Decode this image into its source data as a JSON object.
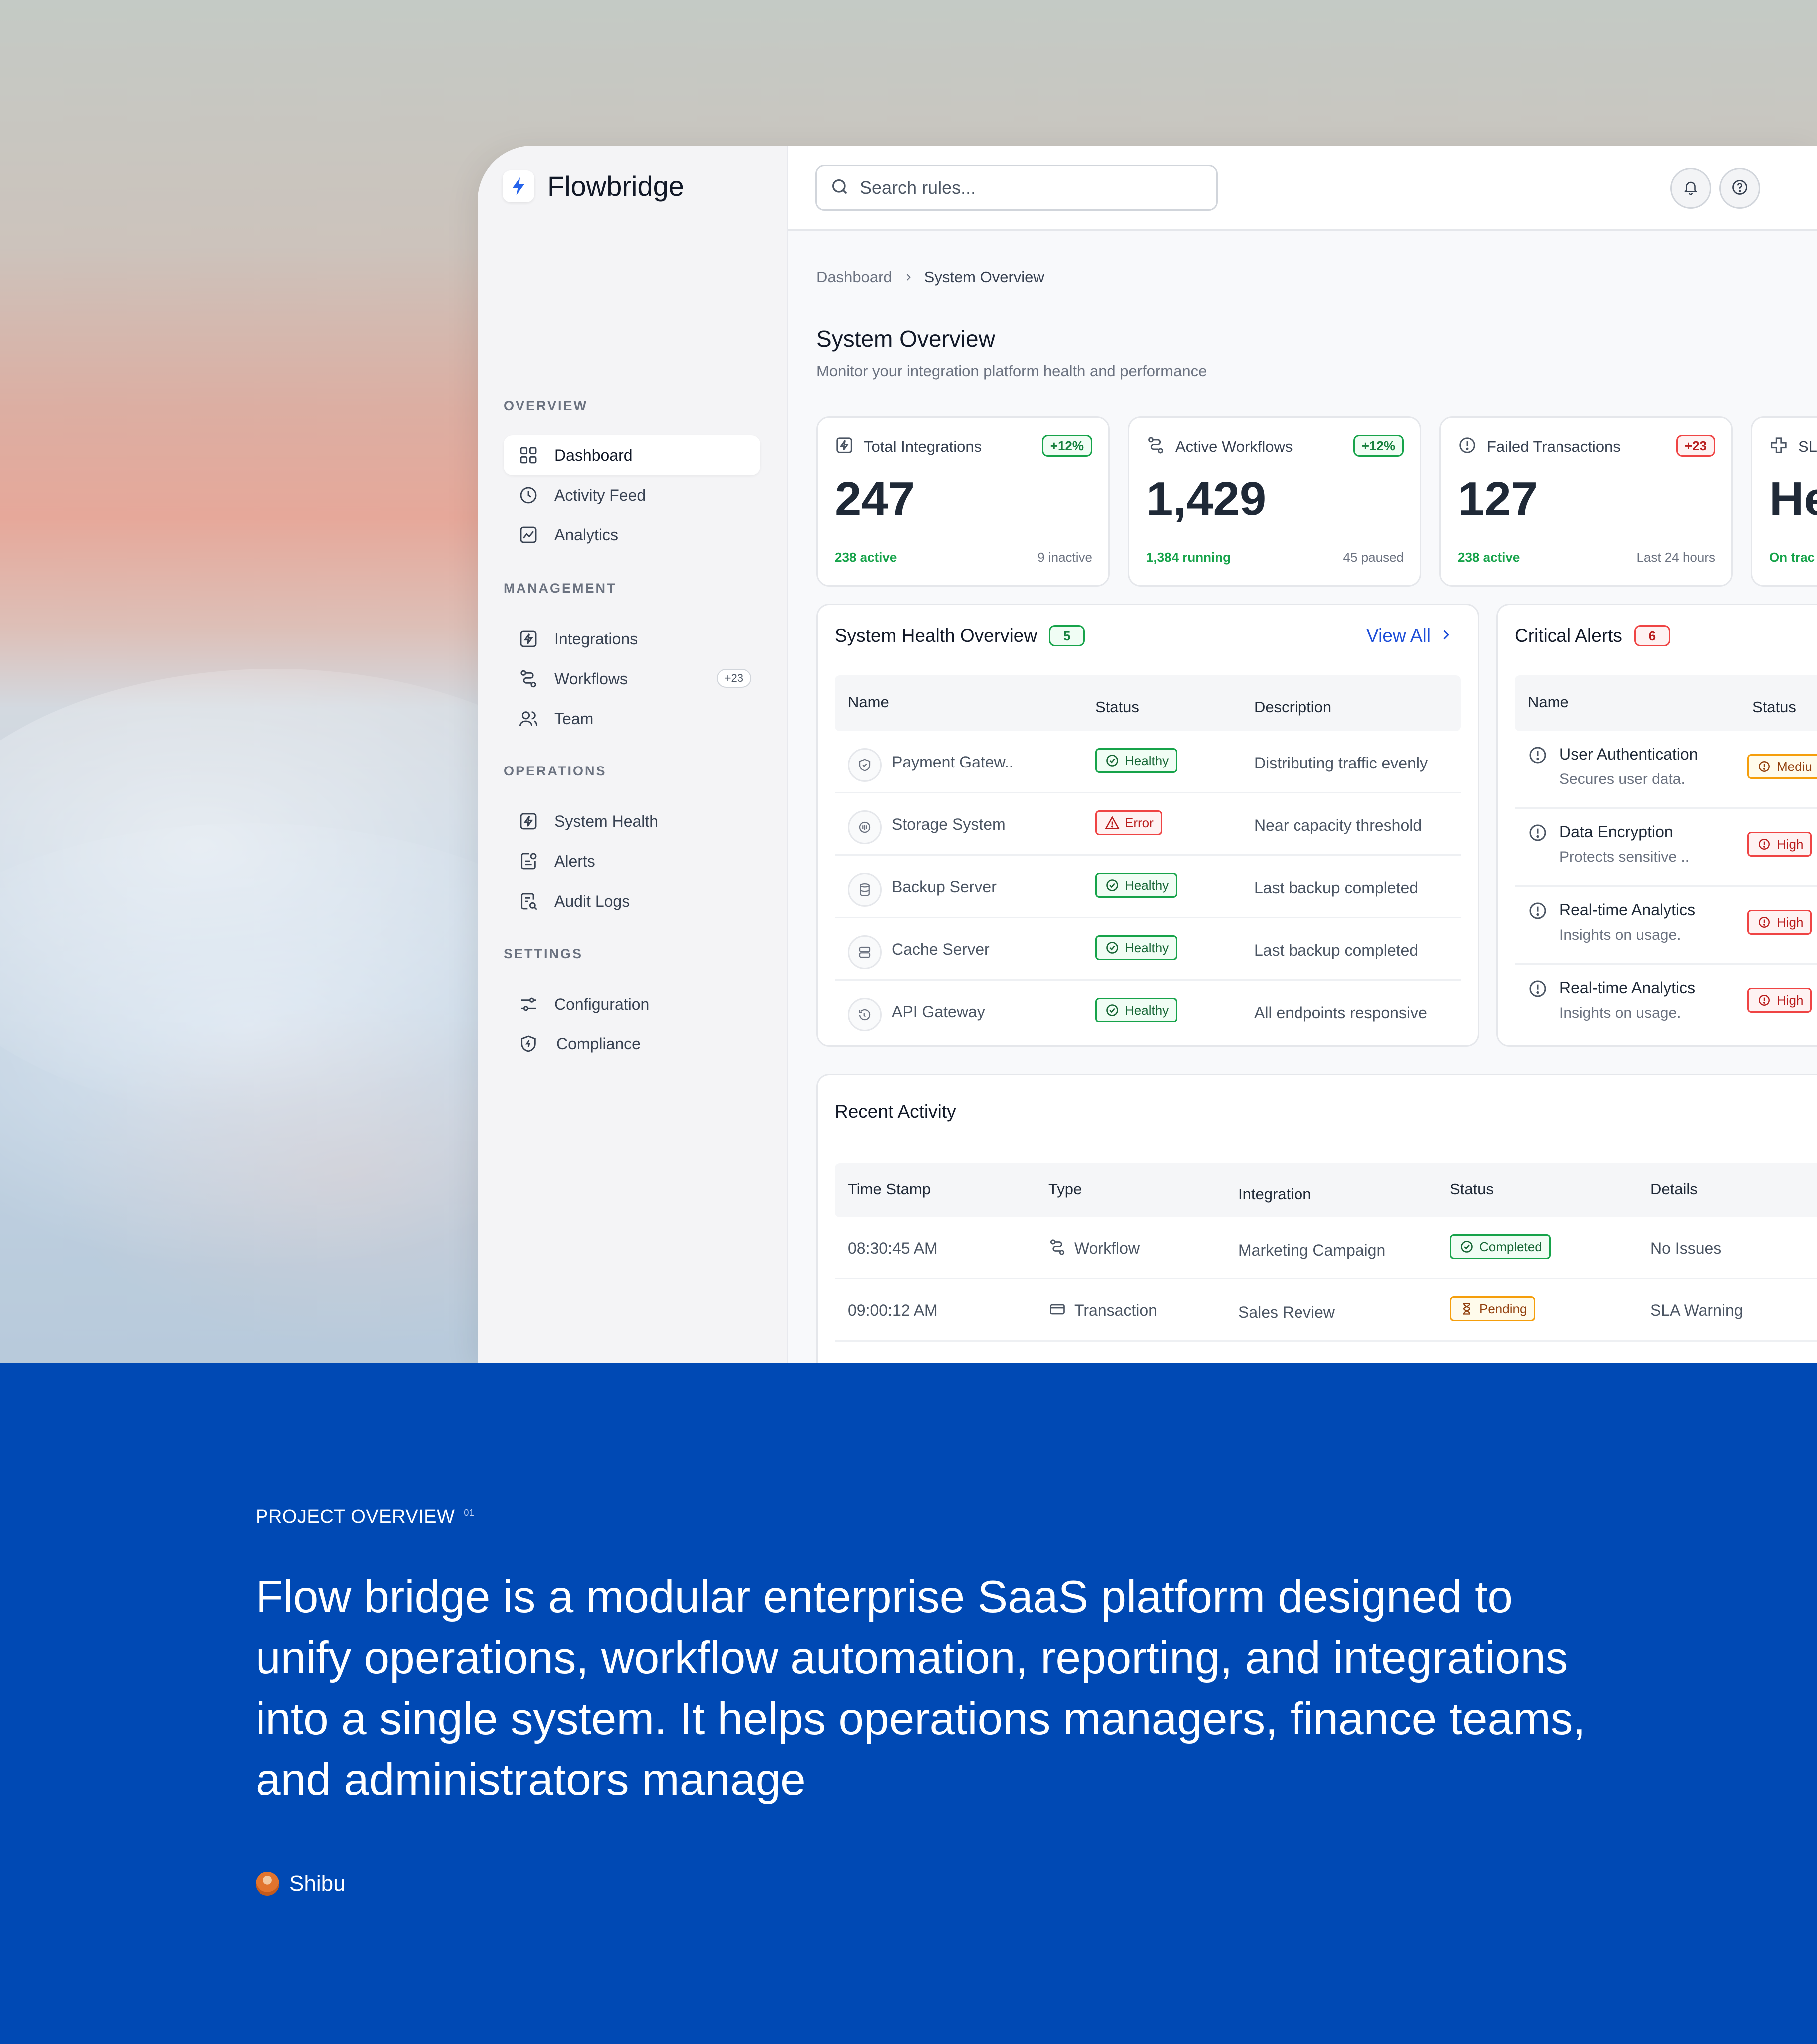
{
  "brand": {
    "name": "Flowbridge",
    "accent": "#2563eb"
  },
  "sidebar": {
    "sections": [
      {
        "label": "OVERVIEW",
        "items": [
          {
            "label": "Dashboard",
            "icon": "grid-icon",
            "active": true
          },
          {
            "label": "Activity Feed",
            "icon": "clock-icon"
          },
          {
            "label": "Analytics",
            "icon": "chart-icon"
          }
        ]
      },
      {
        "label": "MANAGEMENT",
        "items": [
          {
            "label": "Integrations",
            "icon": "bolt-square-icon"
          },
          {
            "label": "Workflows",
            "icon": "workflow-icon",
            "badge": "+23"
          },
          {
            "label": "Team",
            "icon": "team-icon"
          }
        ]
      },
      {
        "label": "OPERATIONS",
        "items": [
          {
            "label": "System Health",
            "icon": "bolt-square-icon"
          },
          {
            "label": "Alerts",
            "icon": "alert-doc-icon"
          },
          {
            "label": "Audit Logs",
            "icon": "audit-doc-icon"
          }
        ]
      },
      {
        "label": "SETTINGS",
        "items": [
          {
            "label": "Configuration",
            "icon": "sliders-icon"
          },
          {
            "label": "Compliance",
            "icon": "shield-icon"
          }
        ]
      }
    ]
  },
  "search": {
    "placeholder": "Search rules..."
  },
  "breadcrumb": {
    "parent": "Dashboard",
    "current": "System Overview"
  },
  "page": {
    "title": "System Overview",
    "subtitle": "Monitor your integration platform health and performance"
  },
  "stats": [
    {
      "title": "Total Integrations",
      "badge": "+12%",
      "badge_tone": "green",
      "value": "247",
      "left": "238 active",
      "right": "9 inactive"
    },
    {
      "title": "Active Workflows",
      "badge": "+12%",
      "badge_tone": "green",
      "value": "1,429",
      "left": "1,384 running",
      "right": "45 paused"
    },
    {
      "title": "Failed Transactions",
      "badge": "+23",
      "badge_tone": "red",
      "value": "127",
      "left": "238 active",
      "right": "Last 24 hours"
    },
    {
      "title": "SL",
      "value": "He",
      "left": "On trac"
    }
  ],
  "health": {
    "title": "System Health Overview",
    "count": "5",
    "view_all": "View All",
    "columns": [
      "Name",
      "Status",
      "Description"
    ],
    "rows": [
      {
        "name": "Payment Gatew..",
        "status": "Healthy",
        "desc": "Distributing traffic evenly",
        "icon": "shield-icon"
      },
      {
        "name": "Storage System",
        "status": "Error",
        "desc": "Near capacity threshold",
        "icon": "storage-icon"
      },
      {
        "name": "Backup Server",
        "status": "Healthy",
        "desc": "Last backup completed",
        "icon": "database-icon"
      },
      {
        "name": "Cache Server",
        "status": "Healthy",
        "desc": "Last backup completed",
        "icon": "server-icon"
      },
      {
        "name": "API Gateway",
        "status": "Healthy",
        "desc": "All endpoints responsive",
        "icon": "gateway-icon"
      }
    ]
  },
  "alerts": {
    "title": "Critical Alerts",
    "count": "6",
    "columns": [
      "Name",
      "Status"
    ],
    "rows": [
      {
        "name": "User Authentication",
        "desc": "Secures user data.",
        "status": "Mediu"
      },
      {
        "name": "Data Encryption",
        "desc": "Protects sensitive ..",
        "status": "High"
      },
      {
        "name": "Real-time Analytics",
        "desc": "Insights on usage.",
        "status": "High"
      },
      {
        "name": "Real-time Analytics",
        "desc": "Insights on usage.",
        "status": "High"
      }
    ]
  },
  "activity": {
    "title": "Recent Activity",
    "columns": [
      "Time Stamp",
      "Type",
      "Integration",
      "Status",
      "Details"
    ],
    "rows": [
      {
        "time": "08:30:45 AM",
        "type": "Workflow",
        "type_icon": "workflow-icon",
        "integration": "Marketing Campaign",
        "status": "Completed",
        "details": "No Issues"
      },
      {
        "time": "09:00:12 AM",
        "type": "Transaction",
        "type_icon": "card-icon",
        "integration": "Sales Review",
        "status": "Pending",
        "details": "SLA Warning"
      }
    ]
  },
  "overview": {
    "eyebrow": "PROJECT OVERVIEW",
    "eyebrow_index": "01",
    "lead": "Flow bridge is a modular enterprise SaaS platform designed to unify operations, workflow automation, reporting, and integrations into a single system. It helps operations managers, finance teams, and administrators manage",
    "author": "Shibu"
  },
  "colors": {
    "band": "#0049b4",
    "healthy": "#16a34a",
    "error": "#ef4444",
    "pending": "#f59e0b",
    "link": "#1d4ed8"
  }
}
